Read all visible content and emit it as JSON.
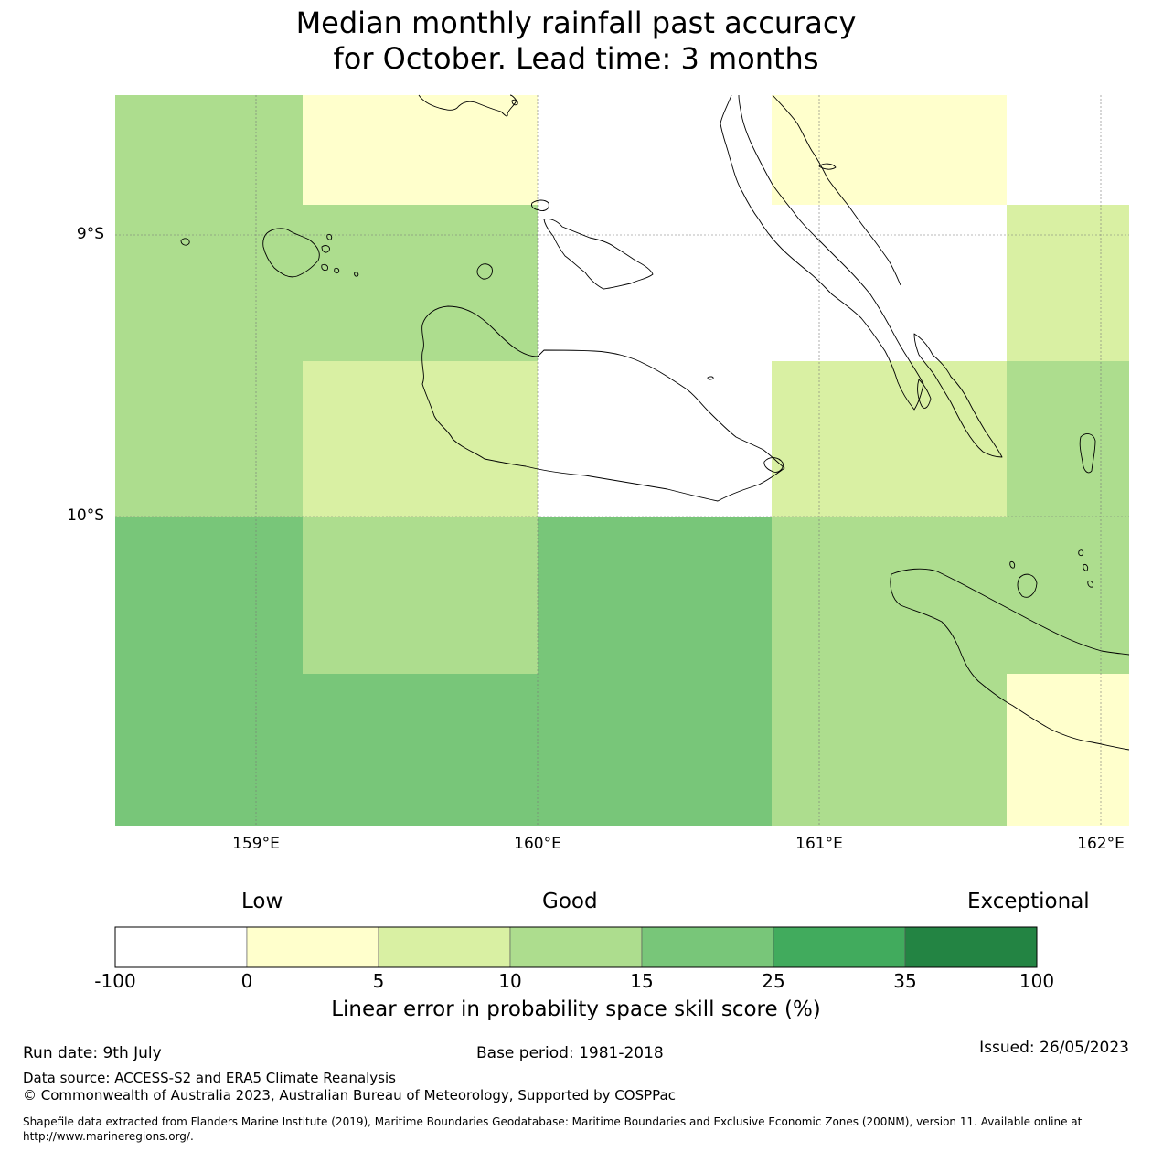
{
  "title": {
    "line1": "Median monthly rainfall past accuracy",
    "line2": "for October. Lead time: 3 months"
  },
  "map": {
    "lat_labels": [
      "9°S",
      "10°S"
    ],
    "lon_labels": [
      "159°E",
      "160°E",
      "161°E",
      "162°E"
    ],
    "colors": {
      "white": "#ffffff",
      "c0_5": "#ffffcc",
      "c5_10": "#d9f0a3",
      "c10_15": "#addd8e",
      "c15_25": "#78c679",
      "c25_35": "#41ab5d",
      "c35_100": "#238443",
      "coastline": "#000000",
      "gridline": "#888888"
    },
    "cells_description": "skill score category per grid cell (rows top→bottom, cols left→right)",
    "grid_categories": [
      [
        "c10_15",
        "c0_5",
        "c0_5",
        "white",
        "white",
        "c0_5",
        "c0_5",
        "white",
        "white"
      ],
      [
        "c10_15",
        "c10_15",
        "c10_15",
        "white",
        "white",
        "white",
        "white",
        "c5_10",
        "c5_10"
      ],
      [
        "c10_15",
        "c5_10",
        "c5_10",
        "white",
        "white",
        "c5_10",
        "c5_10",
        "c10_15",
        "c10_15"
      ],
      [
        "c15_25",
        "c10_15",
        "c10_15",
        "c15_25",
        "c15_25",
        "c10_15",
        "c10_15",
        "c10_15",
        "c10_15"
      ],
      [
        "c15_25",
        "c15_25",
        "c15_25",
        "c15_25",
        "c15_25",
        "c10_15",
        "c10_15",
        "c0_5",
        "c0_5"
      ]
    ]
  },
  "colorbar": {
    "level_labels": [
      "Low",
      "Good",
      "Exceptional"
    ],
    "ticks": [
      "-100",
      "0",
      "5",
      "10",
      "15",
      "25",
      "35",
      "100"
    ],
    "colors": [
      "#ffffff",
      "#ffffcc",
      "#d9f0a3",
      "#addd8e",
      "#78c679",
      "#41ab5d",
      "#238443"
    ],
    "caption": "Linear error in probability space skill score (%)"
  },
  "footer": {
    "run_date": "Run date: 9th July",
    "base_period": "Base period: 1981-2018",
    "issued": "Issued: 26/05/2023",
    "data_source": "Data source: ACCESS-S2 and ERA5 Climate Reanalysis",
    "copyright": "© Commonwealth of Australia 2023, Australian Bureau of Meteorology, Supported by COSPPac",
    "shapefile_line1": "Shapefile data extracted from Flanders Marine Institute (2019), Maritime Boundaries Geodatabase: Maritime Boundaries and Exclusive Economic Zones (200NM), version 11. Available online at",
    "shapefile_line2": "http://www.marineregions.org/."
  }
}
